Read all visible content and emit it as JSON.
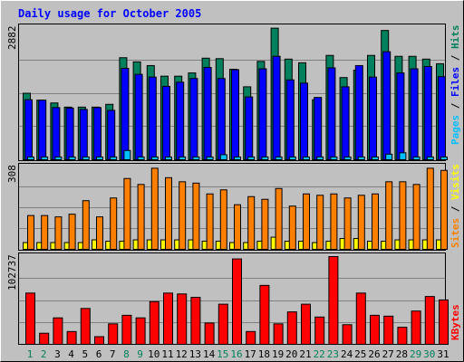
{
  "title": "Daily usage for October 2005",
  "chart_data": [
    {
      "type": "bar",
      "panel": "pages-files-hits",
      "categories": [
        "1",
        "2",
        "3",
        "4",
        "5",
        "6",
        "7",
        "8",
        "9",
        "10",
        "11",
        "12",
        "13",
        "14",
        "15",
        "16",
        "17",
        "18",
        "19",
        "20",
        "21",
        "22",
        "23",
        "24",
        "25",
        "26",
        "27",
        "28",
        "29",
        "30",
        "31"
      ],
      "ymax_label": "2882",
      "ylim": [
        0,
        2882
      ],
      "grid": true,
      "series": [
        {
          "name": "Hits",
          "values": [
            1440,
            1290,
            1230,
            1140,
            1140,
            1140,
            1200,
            2210,
            2120,
            2040,
            1810,
            1810,
            1880,
            2200,
            2190,
            1960,
            1580,
            2130,
            2850,
            2180,
            2100,
            1300,
            2260,
            1780,
            1940,
            2260,
            2800,
            2240,
            2240,
            2180,
            2080
          ]
        },
        {
          "name": "Files",
          "values": [
            1300,
            1290,
            1130,
            1120,
            1090,
            1130,
            1070,
            1980,
            1850,
            1790,
            1590,
            1680,
            1760,
            2000,
            1760,
            1950,
            1360,
            1970,
            2240,
            1730,
            1660,
            1350,
            1990,
            1580,
            2040,
            1790,
            2340,
            1880,
            1970,
            2020,
            1800
          ]
        },
        {
          "name": "Pages",
          "values": [
            60,
            60,
            60,
            60,
            60,
            60,
            60,
            200,
            60,
            60,
            60,
            60,
            60,
            60,
            110,
            60,
            60,
            60,
            60,
            60,
            60,
            60,
            60,
            60,
            60,
            60,
            120,
            150,
            60,
            60,
            60
          ]
        }
      ]
    },
    {
      "type": "bar",
      "panel": "sites-visits",
      "categories": [
        "1",
        "2",
        "3",
        "4",
        "5",
        "6",
        "7",
        "8",
        "9",
        "10",
        "11",
        "12",
        "13",
        "14",
        "15",
        "16",
        "17",
        "18",
        "19",
        "20",
        "21",
        "22",
        "23",
        "24",
        "25",
        "26",
        "27",
        "28",
        "29",
        "30",
        "31"
      ],
      "ymax_label": "308",
      "ylim": [
        0,
        308
      ],
      "grid": true,
      "series": [
        {
          "name": "Visits",
          "values": [
            25,
            25,
            25,
            25,
            25,
            35,
            30,
            30,
            35,
            35,
            35,
            35,
            35,
            30,
            30,
            25,
            25,
            30,
            45,
            30,
            30,
            25,
            30,
            40,
            40,
            30,
            30,
            35,
            35,
            35,
            35
          ]
        },
        {
          "name": "Sites",
          "values": [
            125,
            125,
            120,
            130,
            180,
            120,
            190,
            262,
            240,
            300,
            265,
            250,
            245,
            205,
            220,
            165,
            195,
            185,
            225,
            160,
            205,
            200,
            205,
            190,
            200,
            205,
            250,
            250,
            240,
            300,
            292
          ]
        }
      ]
    },
    {
      "type": "bar",
      "panel": "kbytes",
      "categories": [
        "1",
        "2",
        "3",
        "4",
        "5",
        "6",
        "7",
        "8",
        "9",
        "10",
        "11",
        "12",
        "13",
        "14",
        "15",
        "16",
        "17",
        "18",
        "19",
        "20",
        "21",
        "22",
        "23",
        "24",
        "25",
        "26",
        "27",
        "28",
        "29",
        "30",
        "31"
      ],
      "ymax_label": "102737",
      "ylim": [
        0,
        102737
      ],
      "grid": true,
      "series": [
        {
          "name": "KBytes",
          "values": [
            60000,
            13000,
            31000,
            15000,
            42000,
            9000,
            24000,
            34000,
            31000,
            50000,
            60000,
            59000,
            55000,
            25000,
            47000,
            100000,
            15000,
            69000,
            24000,
            38000,
            47000,
            32000,
            102737,
            23000,
            60000,
            34000,
            33000,
            20000,
            39000,
            56000,
            52000
          ]
        }
      ]
    }
  ],
  "legend": {
    "pages": "Pages",
    "files": "Files",
    "hits": "Hits",
    "sites": "Sites",
    "visits": "Visits",
    "kbytes": "KBytes",
    "sep": " / "
  },
  "colors": {
    "background": "#c0c0c0",
    "plot_bg": "#c0c0c0",
    "title": "#0000ff",
    "hits": "#00805c",
    "files": "#0000ff",
    "pages": "#00c0ff",
    "sites": "#ff8000",
    "visits": "#ffff00",
    "kbytes": "#ff0000",
    "day_weekday": "#000000",
    "day_weekend": "#00805c"
  },
  "weekend_days": [
    "1",
    "2",
    "8",
    "9",
    "15",
    "16",
    "22",
    "23",
    "29",
    "30"
  ]
}
